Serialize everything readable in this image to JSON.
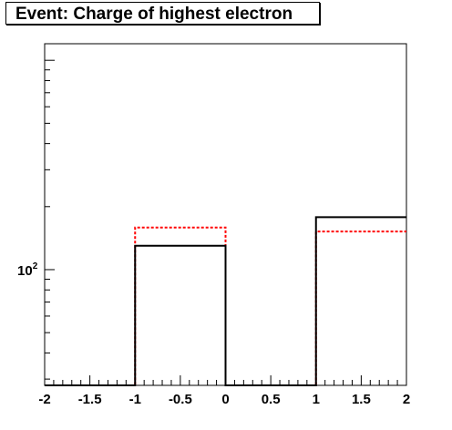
{
  "title": "Event: Charge of highest electron",
  "chart_data": {
    "type": "histogram",
    "title": "Event: Charge of highest electron",
    "xlabel": "",
    "ylabel": "",
    "xlim": [
      -2,
      2
    ],
    "y_scale": "log",
    "ylim": [
      28,
      1200
    ],
    "bin_edges": [
      -2,
      -1,
      0,
      1,
      2
    ],
    "x_tick_labels": [
      "-2",
      "-1.5",
      "-1",
      "-0.5",
      "0",
      "0.5",
      "1",
      "1.5",
      "2"
    ],
    "y_tick_labels": [
      {
        "base": "10",
        "exp": "2",
        "value": 100
      }
    ],
    "series": [
      {
        "style": "solid",
        "color": "#000000",
        "values": [
          0,
          130,
          0,
          178
        ]
      },
      {
        "style": "dashed",
        "color": "#ff0000",
        "values": [
          0,
          159,
          0,
          152
        ]
      }
    ],
    "grid": false,
    "legend": "none"
  }
}
